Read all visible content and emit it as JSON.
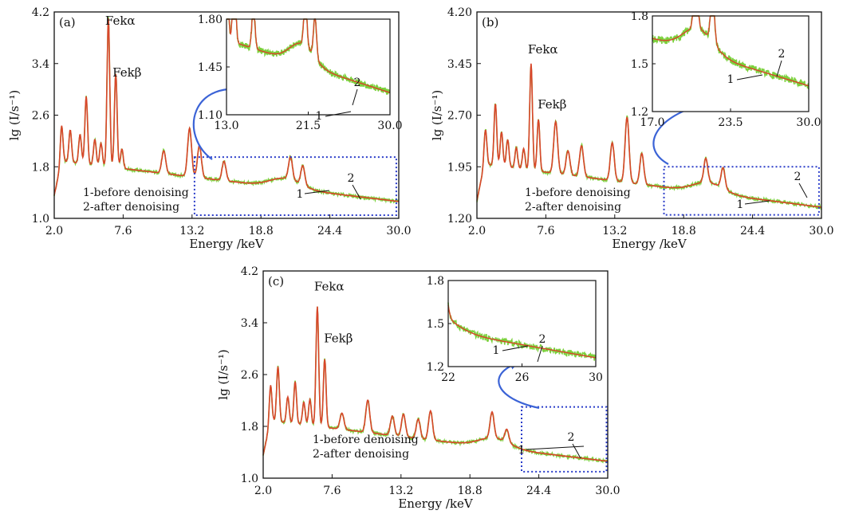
{
  "colors": {
    "before": "#7bd13c",
    "after": "#d9452b",
    "box": "#2a3cc9",
    "arrow": "#3b63d6",
    "axis": "#111111"
  },
  "chart_data": [
    {
      "id": "a",
      "type": "line",
      "panel_label": "(a)",
      "xlabel": "Energy /keV",
      "ylabel": "lg (I/s⁻¹)",
      "xlim": [
        2.0,
        30.0
      ],
      "ylim": [
        1.0,
        4.2
      ],
      "xticks": [
        2.0,
        7.6,
        13.2,
        18.8,
        24.4,
        30.0
      ],
      "yticks": [
        1.0,
        1.8,
        2.6,
        3.4,
        4.2
      ],
      "xtick_labels": [
        "2.0",
        "7.6",
        "13.2",
        "18.8",
        "24.4",
        "30.0"
      ],
      "ytick_labels": [
        "1.0",
        "1.8",
        "2.6",
        "3.4",
        "4.2"
      ],
      "base_level": 1.9,
      "peaks": [
        [
          2.6,
          0.55
        ],
        [
          3.3,
          0.5
        ],
        [
          4.1,
          0.45
        ],
        [
          4.6,
          1.05
        ],
        [
          5.3,
          0.4
        ],
        [
          5.8,
          0.35
        ],
        [
          6.4,
          2.3
        ],
        [
          7.0,
          1.45
        ],
        [
          7.5,
          0.3
        ],
        [
          10.9,
          0.35
        ],
        [
          13.0,
          0.75
        ],
        [
          13.8,
          0.5
        ],
        [
          15.8,
          0.3
        ],
        [
          21.2,
          0.35
        ],
        [
          22.2,
          0.3
        ]
      ],
      "annotations": [
        {
          "text": "Fekα",
          "x": 6.4,
          "y": 4.0
        },
        {
          "text": "Fekβ",
          "x": 7.0,
          "y": 3.2
        }
      ],
      "legend": [
        "1-before denoising",
        "2-after denoising"
      ],
      "zoom_box": {
        "x0": 13.4,
        "x1": 29.8,
        "y0": 1.05,
        "y1": 1.95
      },
      "inset": {
        "xlim": [
          13.0,
          30.0
        ],
        "ylim": [
          1.1,
          1.8
        ],
        "xticks": [
          13.0,
          21.5,
          30.0
        ],
        "yticks": [
          1.1,
          1.45,
          1.8
        ],
        "xtick_labels": [
          "13.0",
          "21.5",
          "30.0"
        ],
        "ytick_labels": [
          "1.10",
          "1.45",
          "1.80"
        ],
        "pointer_1": "1",
        "pointer_2": "2"
      }
    },
    {
      "id": "b",
      "type": "line",
      "panel_label": "(b)",
      "xlabel": "Energy /keV",
      "ylabel": "lg (I/s⁻¹)",
      "xlim": [
        2.0,
        30.0
      ],
      "ylim": [
        1.2,
        4.2
      ],
      "xticks": [
        2.0,
        7.6,
        13.2,
        18.8,
        24.4,
        30.0
      ],
      "yticks": [
        1.2,
        1.95,
        2.7,
        3.45,
        4.2
      ],
      "xtick_labels": [
        "2.0",
        "7.6",
        "13.2",
        "18.8",
        "24.4",
        "30.0"
      ],
      "ytick_labels": [
        "1.20",
        "1.95",
        "2.70",
        "3.45",
        "4.20"
      ],
      "base_level": 2.0,
      "peaks": [
        [
          2.7,
          0.5
        ],
        [
          3.5,
          0.9
        ],
        [
          4.0,
          0.5
        ],
        [
          4.5,
          0.4
        ],
        [
          5.2,
          0.3
        ],
        [
          5.8,
          0.3
        ],
        [
          6.4,
          1.55
        ],
        [
          7.0,
          0.75
        ],
        [
          8.4,
          0.75
        ],
        [
          9.4,
          0.35
        ],
        [
          10.5,
          0.45
        ],
        [
          13.0,
          0.55
        ],
        [
          14.2,
          0.95
        ],
        [
          15.4,
          0.45
        ],
        [
          20.6,
          0.35
        ],
        [
          22.0,
          0.3
        ]
      ],
      "annotations": [
        {
          "text": "Fekα",
          "x": 6.4,
          "y": 3.6
        },
        {
          "text": "Fekβ",
          "x": 7.2,
          "y": 2.8
        }
      ],
      "legend": [
        "1-before denoising",
        "2-after denoising"
      ],
      "zoom_box": {
        "x0": 17.2,
        "x1": 29.8,
        "y0": 1.25,
        "y1": 1.95
      },
      "inset": {
        "xlim": [
          17.0,
          30.0
        ],
        "ylim": [
          1.2,
          1.8
        ],
        "xticks": [
          17.0,
          23.5,
          30.0
        ],
        "yticks": [
          1.2,
          1.5,
          1.8
        ],
        "xtick_labels": [
          "17.0",
          "23.5",
          "30.0"
        ],
        "ytick_labels": [
          "1.2",
          "1.5",
          "1.8"
        ],
        "pointer_1": "1",
        "pointer_2": "2"
      }
    },
    {
      "id": "c",
      "type": "line",
      "panel_label": "(c)",
      "xlabel": "Energy /keV",
      "ylabel": "lg (I/s⁻¹)",
      "xlim": [
        2.0,
        30.0
      ],
      "ylim": [
        1.0,
        4.2
      ],
      "xticks": [
        2.0,
        7.6,
        13.2,
        18.8,
        24.4,
        30.0
      ],
      "yticks": [
        1.0,
        1.8,
        2.6,
        3.4,
        4.2
      ],
      "xtick_labels": [
        "2.0",
        "7.6",
        "13.2",
        "18.8",
        "24.4",
        "30.0"
      ],
      "ytick_labels": [
        "1.0",
        "1.8",
        "2.6",
        "3.4",
        "4.2"
      ],
      "base_level": 1.9,
      "peaks": [
        [
          2.6,
          0.55
        ],
        [
          3.2,
          0.85
        ],
        [
          4.0,
          0.4
        ],
        [
          4.6,
          0.65
        ],
        [
          5.3,
          0.35
        ],
        [
          5.8,
          0.4
        ],
        [
          6.4,
          1.85
        ],
        [
          7.0,
          1.05
        ],
        [
          8.4,
          0.25
        ],
        [
          10.5,
          0.5
        ],
        [
          12.5,
          0.3
        ],
        [
          13.4,
          0.35
        ],
        [
          14.6,
          0.3
        ],
        [
          15.6,
          0.45
        ],
        [
          20.6,
          0.4
        ],
        [
          21.8,
          0.2
        ]
      ],
      "annotations": [
        {
          "text": "Fekα",
          "x": 6.4,
          "y": 3.9
        },
        {
          "text": "Fekβ",
          "x": 7.2,
          "y": 3.1
        }
      ],
      "legend": [
        "1-before denoising",
        "2-after denoising"
      ],
      "zoom_box": {
        "x0": 23.0,
        "x1": 29.9,
        "y0": 1.1,
        "y1": 2.1
      },
      "inset": {
        "xlim": [
          22,
          30
        ],
        "ylim": [
          1.2,
          1.8
        ],
        "xticks": [
          22,
          26,
          30
        ],
        "yticks": [
          1.2,
          1.5,
          1.8
        ],
        "xtick_labels": [
          "22",
          "26",
          "30"
        ],
        "ytick_labels": [
          "1.2",
          "1.5",
          "1.8"
        ],
        "pointer_1": "1",
        "pointer_2": "2"
      }
    }
  ]
}
